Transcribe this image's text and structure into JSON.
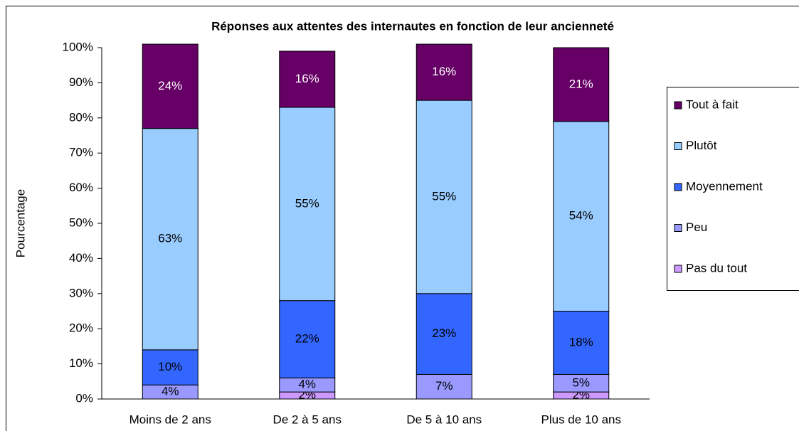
{
  "chart_data": {
    "type": "stacked_bar",
    "title": "Réponses aux attentes des internautes en fonction de leur ancienneté",
    "y_label": "Pourcentage",
    "categories": [
      "Moins de 2 ans",
      "De 2 à 5 ans",
      "De 5 à 10 ans",
      "Plus de 10 ans"
    ],
    "series": [
      {
        "name": "Pas du tout",
        "color": "#cc99ff",
        "values": [
          0,
          2,
          0,
          2
        ],
        "value_labels": [
          null,
          "2%",
          null,
          "2%"
        ]
      },
      {
        "name": "Peu",
        "color": "#9999ff",
        "values": [
          4,
          4,
          7,
          5
        ],
        "value_labels": [
          "4%",
          "4%",
          "7%",
          "5%"
        ]
      },
      {
        "name": "Moyennement",
        "color": "#3366ff",
        "values": [
          10,
          22,
          23,
          18
        ],
        "value_labels": [
          "10%",
          "22%",
          "23%",
          "18%"
        ]
      },
      {
        "name": "Plutôt",
        "color": "#99ccff",
        "values": [
          63,
          55,
          55,
          54
        ],
        "value_labels": [
          "63%",
          "55%",
          "55%",
          "54%"
        ]
      },
      {
        "name": "Tout à fait",
        "color": "#660066",
        "values": [
          24,
          16,
          16,
          21
        ],
        "value_labels": [
          "24%",
          "16%",
          "16%",
          "21%"
        ]
      }
    ],
    "ylim": [
      0,
      100
    ],
    "yticks": [
      {
        "value": 0,
        "label": "0%"
      },
      {
        "value": 10,
        "label": "10%"
      },
      {
        "value": 20,
        "label": "20%"
      },
      {
        "value": 30,
        "label": "30%"
      },
      {
        "value": 40,
        "label": "40%"
      },
      {
        "value": 50,
        "label": "50%"
      },
      {
        "value": 60,
        "label": "60%"
      },
      {
        "value": 70,
        "label": "70%"
      },
      {
        "value": 80,
        "label": "80%"
      },
      {
        "value": 90,
        "label": "90%"
      },
      {
        "value": 100,
        "label": "100%"
      }
    ],
    "legend": "right"
  }
}
